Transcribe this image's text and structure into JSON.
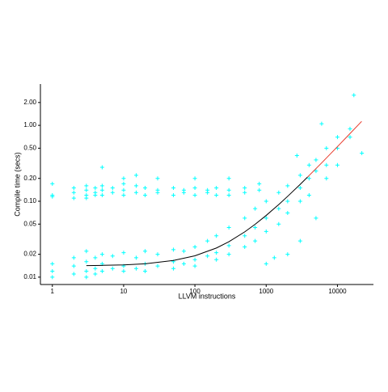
{
  "chart_data": {
    "type": "scatter",
    "xlabel": "LLVM instructions",
    "ylabel": "Compile time (secs)",
    "xscale": "log",
    "yscale": "log",
    "xlim": [
      0.68,
      32000
    ],
    "ylim": [
      0.008,
      3.5
    ],
    "xticks": [
      1,
      10,
      100,
      1000,
      10000
    ],
    "yticks": [
      0.01,
      0.02,
      0.05,
      {
        "value": 0.1,
        "label": "0.10"
      },
      {
        "value": 0.2,
        "label": "0.20"
      },
      {
        "value": 0.5,
        "label": "0.50"
      },
      {
        "value": 1,
        "label": "1.00"
      },
      {
        "value": 2,
        "label": "2.00"
      }
    ],
    "points": {
      "color": "#00ffff",
      "x": [
        1,
        1,
        1,
        2,
        2,
        2,
        3,
        3,
        3,
        3,
        4,
        4,
        4,
        5,
        5,
        5,
        5,
        7,
        7,
        10,
        10,
        10,
        10,
        15,
        15,
        15,
        20,
        20,
        30,
        30,
        30,
        50,
        50,
        70,
        70,
        100,
        100,
        100,
        150,
        150,
        200,
        200,
        300,
        300,
        300,
        500,
        500,
        800,
        800,
        1,
        1,
        1,
        2,
        2,
        2,
        3,
        3,
        3,
        3,
        4,
        4,
        4,
        5,
        5,
        5,
        7,
        7,
        10,
        10,
        10,
        15,
        15,
        20,
        20,
        20,
        30,
        30,
        50,
        50,
        50,
        70,
        70,
        100,
        100,
        100,
        150,
        150,
        200,
        200,
        200,
        300,
        300,
        300,
        500,
        500,
        500,
        700,
        700,
        700,
        1000,
        1000,
        1000,
        1000,
        1500,
        1500,
        1500,
        2000,
        2000,
        2000,
        2000,
        3000,
        3000,
        3000,
        3000,
        4000,
        4000,
        4000,
        5000,
        5000,
        5000,
        7000,
        7000,
        7000,
        10000,
        10000,
        10000,
        15000,
        15000,
        17000,
        22000,
        6000,
        2700,
        1300
      ],
      "y": [
        0.17,
        0.115,
        0.12,
        0.11,
        0.13,
        0.15,
        0.12,
        0.14,
        0.16,
        0.11,
        0.13,
        0.15,
        0.12,
        0.14,
        0.28,
        0.12,
        0.16,
        0.13,
        0.15,
        0.12,
        0.14,
        0.17,
        0.2,
        0.13,
        0.16,
        0.22,
        0.12,
        0.15,
        0.14,
        0.13,
        0.2,
        0.12,
        0.15,
        0.14,
        0.13,
        0.15,
        0.12,
        0.2,
        0.14,
        0.13,
        0.15,
        0.12,
        0.14,
        0.2,
        0.12,
        0.15,
        0.13,
        0.17,
        0.14,
        0.01,
        0.012,
        0.015,
        0.011,
        0.014,
        0.018,
        0.012,
        0.016,
        0.022,
        0.01,
        0.013,
        0.018,
        0.011,
        0.012,
        0.02,
        0.015,
        0.013,
        0.019,
        0.014,
        0.021,
        0.012,
        0.013,
        0.018,
        0.015,
        0.022,
        0.012,
        0.014,
        0.02,
        0.016,
        0.023,
        0.013,
        0.015,
        0.022,
        0.017,
        0.025,
        0.014,
        0.019,
        0.03,
        0.021,
        0.035,
        0.017,
        0.026,
        0.045,
        0.02,
        0.035,
        0.06,
        0.025,
        0.045,
        0.08,
        0.03,
        0.06,
        0.1,
        0.04,
        0.015,
        0.08,
        0.13,
        0.05,
        0.1,
        0.16,
        0.07,
        0.02,
        0.15,
        0.22,
        0.1,
        0.03,
        0.2,
        0.3,
        0.12,
        0.25,
        0.35,
        0.06,
        0.3,
        0.5,
        0.2,
        0.5,
        0.7,
        0.3,
        0.7,
        0.9,
        2.5,
        0.43,
        1.05,
        0.4,
        0.018
      ]
    },
    "lines": [
      {
        "color": "#000000",
        "x": [
          3,
          5,
          10,
          20,
          50,
          100,
          200,
          300,
          500,
          700,
          1000,
          1500,
          2000,
          3000,
          3800
        ],
        "y": [
          0.0142,
          0.0143,
          0.0145,
          0.015,
          0.0166,
          0.0191,
          0.0242,
          0.0293,
          0.0395,
          0.0497,
          0.065,
          0.0905,
          0.116,
          0.167,
          0.208
        ]
      },
      {
        "color": "#e8392b",
        "x": [
          3800,
          6000,
          10000,
          15000,
          21850
        ],
        "y": [
          0.208,
          0.32,
          0.524,
          0.779,
          1.128
        ]
      }
    ]
  }
}
